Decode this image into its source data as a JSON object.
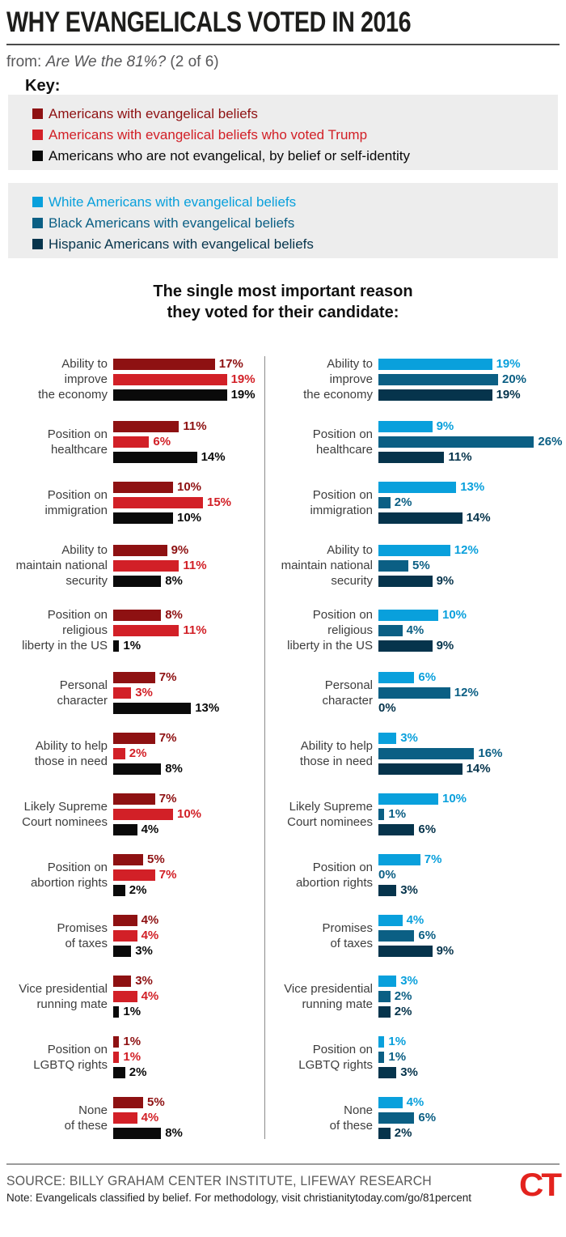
{
  "header": {
    "title": "WHY EVANGELICALS VOTED IN 2016",
    "from_prefix": "from: ",
    "series_name": "Are We the 81%?",
    "series_part": " (2 of 6)"
  },
  "key": {
    "label": "Key:",
    "groups": [
      {
        "items": [
          {
            "label": "Americans with evangelical beliefs",
            "color": "#8e1112"
          },
          {
            "label": "Americans with evangelical beliefs who voted Trump",
            "color": "#d22027"
          },
          {
            "label": "Americans who are not evangelical, by belief or self-identity",
            "color": "#0a0a0a"
          }
        ]
      },
      {
        "items": [
          {
            "label": "White Americans with evangelical beliefs",
            "color": "#09a0dc"
          },
          {
            "label": "Black Americans with evangelical beliefs",
            "color": "#0b5f84"
          },
          {
            "label": "Hispanic Americans with evangelical beliefs",
            "color": "#06344c"
          }
        ]
      }
    ]
  },
  "chart_title": {
    "line1": "The single most important reason",
    "line2": "they voted for their candidate:"
  },
  "chart_data": {
    "type": "bar",
    "orientation": "horizontal",
    "unit": "%",
    "value_range": [
      0,
      26
    ],
    "legend_position": "top",
    "grid": false,
    "categories": [
      "Ability to improve the economy",
      "Position on healthcare",
      "Position on immigration",
      "Ability to maintain national security",
      "Position on religious liberty in the US",
      "Personal character",
      "Ability to help those in need",
      "Likely Supreme Court nominees",
      "Position on abortion rights",
      "Promises of taxes",
      "Vice presidential running mate",
      "Position on LGBTQ rights",
      "None of these"
    ],
    "category_lines": [
      [
        "Ability to",
        "improve",
        "the economy"
      ],
      [
        "Position on",
        "healthcare"
      ],
      [
        "Position on",
        "immigration"
      ],
      [
        "Ability to",
        "maintain national",
        "security"
      ],
      [
        "Position on",
        "religious",
        "liberty in the US"
      ],
      [
        "Personal",
        "character"
      ],
      [
        "Ability to help",
        "those in need"
      ],
      [
        "Likely Supreme",
        "Court nominees"
      ],
      [
        "Position on",
        "abortion rights"
      ],
      [
        "Promises",
        "of taxes"
      ],
      [
        "Vice presidential",
        "running mate"
      ],
      [
        "Position on",
        "LGBTQ rights"
      ],
      [
        "None",
        "of these"
      ]
    ],
    "panels": [
      {
        "name": "left",
        "series": [
          {
            "name": "Americans with evangelical beliefs",
            "color": "#8e1112",
            "values": [
              17,
              11,
              10,
              9,
              8,
              7,
              7,
              7,
              5,
              4,
              3,
              1,
              5
            ]
          },
          {
            "name": "Americans with evangelical beliefs who voted Trump",
            "color": "#d22027",
            "values": [
              19,
              6,
              15,
              11,
              11,
              3,
              2,
              10,
              7,
              4,
              4,
              1,
              4
            ]
          },
          {
            "name": "Americans who are not evangelical, by belief or self-identity",
            "color": "#0a0a0a",
            "values": [
              19,
              14,
              10,
              8,
              1,
              13,
              8,
              4,
              2,
              3,
              1,
              2,
              8
            ]
          }
        ]
      },
      {
        "name": "right",
        "series": [
          {
            "name": "White Americans with evangelical beliefs",
            "color": "#09a0dc",
            "values": [
              19,
              9,
              13,
              12,
              10,
              6,
              3,
              10,
              7,
              4,
              3,
              1,
              4
            ]
          },
          {
            "name": "Black Americans with evangelical beliefs",
            "color": "#0b5f84",
            "values": [
              20,
              26,
              2,
              5,
              4,
              12,
              16,
              1,
              0,
              6,
              2,
              1,
              6
            ]
          },
          {
            "name": "Hispanic Americans with evangelical beliefs",
            "color": "#06344c",
            "values": [
              19,
              11,
              14,
              9,
              9,
              0,
              14,
              6,
              3,
              9,
              2,
              3,
              2
            ]
          }
        ]
      }
    ]
  },
  "footer": {
    "source": "SOURCE: BILLY GRAHAM CENTER INSTITUTE, LIFEWAY RESEARCH",
    "note": "Note: Evangelicals classified by belief. For methodology, visit christianitytoday.com/go/81percent",
    "logo": "CT",
    "logo_color": "#e3231e"
  }
}
